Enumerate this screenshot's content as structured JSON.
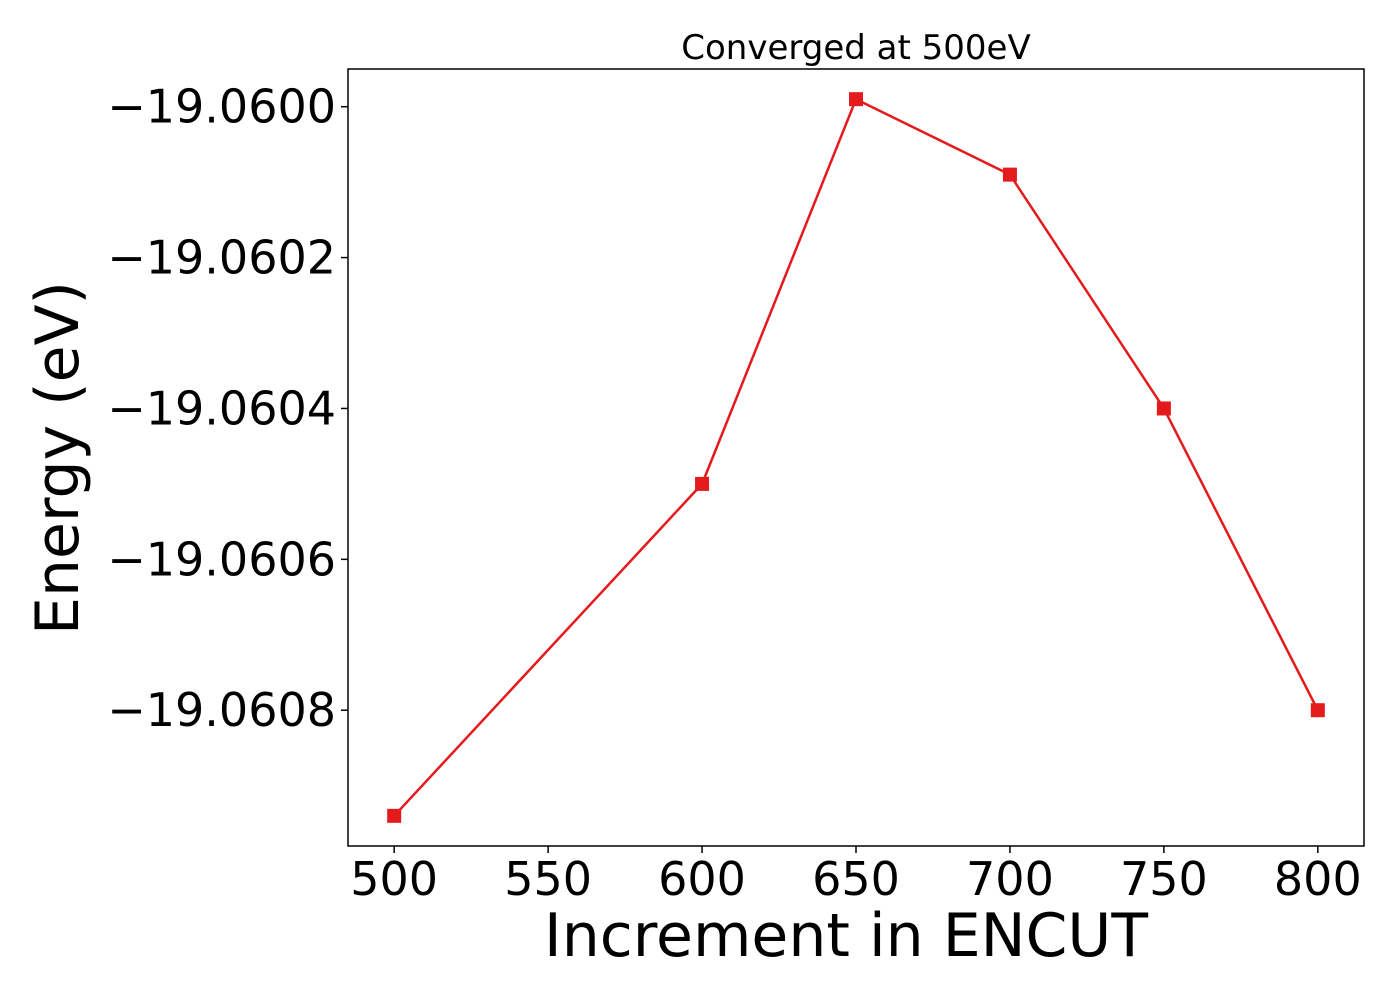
{
  "chart_data": {
    "type": "line",
    "title": "Converged at 500eV",
    "xlabel": "Increment in ENCUT",
    "ylabel": "Energy (eV)",
    "x": [
      500,
      600,
      650,
      700,
      750,
      800
    ],
    "series": [
      {
        "values": [
          -19.06094,
          -19.0605,
          -19.05999,
          -19.06009,
          -19.0604,
          -19.0608
        ],
        "color": "#e41a1c",
        "marker": "square"
      }
    ],
    "xlim": [
      485,
      815
    ],
    "ylim": [
      -19.06098,
      -19.05995
    ],
    "xticks": [
      500,
      550,
      600,
      650,
      700,
      750,
      800
    ],
    "xtick_labels": [
      "500",
      "550",
      "600",
      "650",
      "700",
      "750",
      "800"
    ],
    "yticks": [
      -19.06,
      -19.0602,
      -19.0604,
      -19.0606,
      -19.0608
    ],
    "ytick_labels": [
      "−19.0600",
      "−19.0602",
      "−19.0604",
      "−19.0606",
      "−19.0608"
    ],
    "grid": false,
    "legend": "none"
  }
}
